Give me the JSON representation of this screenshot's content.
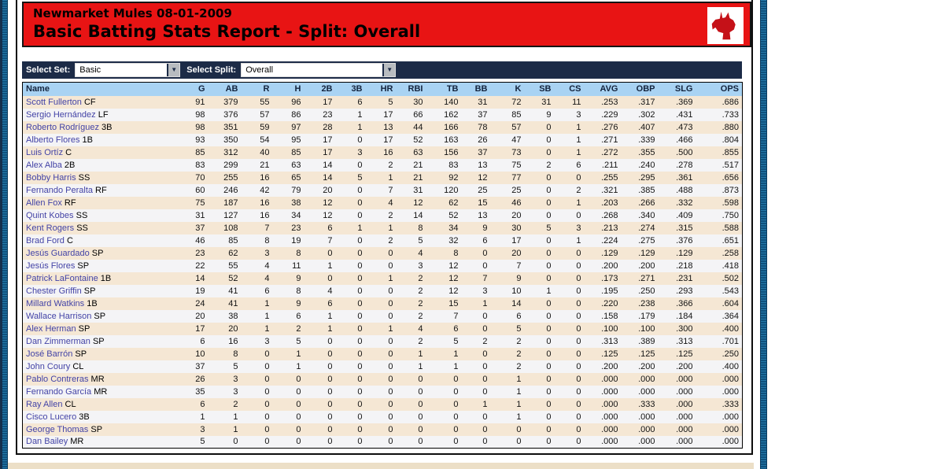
{
  "header": {
    "title_line1": "Newmarket Mules 08-01-2009",
    "title_line2": "Basic Batting Stats Report - Split: Overall"
  },
  "icons": {
    "dropdown_arrow": "▼",
    "team_logo": "mule-head"
  },
  "controls": {
    "select_set_label": "Select Set:",
    "select_set_value": "Basic",
    "select_split_label": "Select Split:",
    "select_split_value": "Overall"
  },
  "colors": {
    "header_red": "#e81414",
    "bar_navy": "#1c2b47",
    "table_header_blue": "#a9d3f3",
    "row_tan": "#f5e7d4",
    "row_light": "#f4f4f6",
    "player_link": "#4343a6",
    "side_bar_teal": "#0f517d"
  },
  "table": {
    "columns": [
      "Name",
      "G",
      "AB",
      "R",
      "H",
      "2B",
      "3B",
      "HR",
      "RBI",
      "TB",
      "BB",
      "K",
      "SB",
      "CS",
      "AVG",
      "OBP",
      "SLG",
      "OPS"
    ],
    "rows": [
      {
        "name": "Scott Fullerton",
        "pos": "CF",
        "stats": [
          "91",
          "379",
          "55",
          "96",
          "17",
          "6",
          "5",
          "30",
          "140",
          "31",
          "72",
          "31",
          "11",
          ".253",
          ".317",
          ".369",
          ".686"
        ]
      },
      {
        "name": "Sergio Hernández",
        "pos": "LF",
        "stats": [
          "98",
          "376",
          "57",
          "86",
          "23",
          "1",
          "17",
          "66",
          "162",
          "37",
          "85",
          "9",
          "3",
          ".229",
          ".302",
          ".431",
          ".733"
        ]
      },
      {
        "name": "Roberto Rodríguez",
        "pos": "3B",
        "stats": [
          "98",
          "351",
          "59",
          "97",
          "28",
          "1",
          "13",
          "44",
          "166",
          "78",
          "57",
          "0",
          "1",
          ".276",
          ".407",
          ".473",
          ".880"
        ]
      },
      {
        "name": "Alberto Flores",
        "pos": "1B",
        "stats": [
          "93",
          "350",
          "54",
          "95",
          "17",
          "0",
          "17",
          "52",
          "163",
          "26",
          "47",
          "0",
          "1",
          ".271",
          ".339",
          ".466",
          ".804"
        ]
      },
      {
        "name": "Luis Ortíz",
        "pos": "C",
        "stats": [
          "85",
          "312",
          "40",
          "85",
          "17",
          "3",
          "16",
          "63",
          "156",
          "37",
          "73",
          "0",
          "1",
          ".272",
          ".355",
          ".500",
          ".855"
        ]
      },
      {
        "name": "Alex Alba",
        "pos": "2B",
        "stats": [
          "83",
          "299",
          "21",
          "63",
          "14",
          "0",
          "2",
          "21",
          "83",
          "13",
          "75",
          "2",
          "6",
          ".211",
          ".240",
          ".278",
          ".517"
        ]
      },
      {
        "name": "Bobby Harris",
        "pos": "SS",
        "stats": [
          "70",
          "255",
          "16",
          "65",
          "14",
          "5",
          "1",
          "21",
          "92",
          "12",
          "77",
          "0",
          "0",
          ".255",
          ".295",
          ".361",
          ".656"
        ]
      },
      {
        "name": "Fernando Peralta",
        "pos": "RF",
        "stats": [
          "60",
          "246",
          "42",
          "79",
          "20",
          "0",
          "7",
          "31",
          "120",
          "25",
          "25",
          "0",
          "2",
          ".321",
          ".385",
          ".488",
          ".873"
        ]
      },
      {
        "name": "Allen Fox",
        "pos": "RF",
        "stats": [
          "75",
          "187",
          "16",
          "38",
          "12",
          "0",
          "4",
          "12",
          "62",
          "15",
          "46",
          "0",
          "1",
          ".203",
          ".266",
          ".332",
          ".598"
        ]
      },
      {
        "name": "Quint Kobes",
        "pos": "SS",
        "stats": [
          "31",
          "127",
          "16",
          "34",
          "12",
          "0",
          "2",
          "14",
          "52",
          "13",
          "20",
          "0",
          "0",
          ".268",
          ".340",
          ".409",
          ".750"
        ]
      },
      {
        "name": "Kent Rogers",
        "pos": "SS",
        "stats": [
          "37",
          "108",
          "7",
          "23",
          "6",
          "1",
          "1",
          "8",
          "34",
          "9",
          "30",
          "5",
          "3",
          ".213",
          ".274",
          ".315",
          ".588"
        ]
      },
      {
        "name": "Brad Ford",
        "pos": "C",
        "stats": [
          "46",
          "85",
          "8",
          "19",
          "7",
          "0",
          "2",
          "5",
          "32",
          "6",
          "17",
          "0",
          "1",
          ".224",
          ".275",
          ".376",
          ".651"
        ]
      },
      {
        "name": "Jesús Guardado",
        "pos": "SP",
        "stats": [
          "23",
          "62",
          "3",
          "8",
          "0",
          "0",
          "0",
          "4",
          "8",
          "0",
          "20",
          "0",
          "0",
          ".129",
          ".129",
          ".129",
          ".258"
        ]
      },
      {
        "name": "Jesús Flores",
        "pos": "SP",
        "stats": [
          "22",
          "55",
          "4",
          "11",
          "1",
          "0",
          "0",
          "3",
          "12",
          "0",
          "7",
          "0",
          "0",
          ".200",
          ".200",
          ".218",
          ".418"
        ]
      },
      {
        "name": "Patrick LaFontaine",
        "pos": "1B",
        "stats": [
          "14",
          "52",
          "4",
          "9",
          "0",
          "0",
          "1",
          "2",
          "12",
          "7",
          "9",
          "0",
          "0",
          ".173",
          ".271",
          ".231",
          ".502"
        ]
      },
      {
        "name": "Chester Griffin",
        "pos": "SP",
        "stats": [
          "19",
          "41",
          "6",
          "8",
          "4",
          "0",
          "0",
          "2",
          "12",
          "3",
          "10",
          "1",
          "0",
          ".195",
          ".250",
          ".293",
          ".543"
        ]
      },
      {
        "name": "Millard Watkins",
        "pos": "1B",
        "stats": [
          "24",
          "41",
          "1",
          "9",
          "6",
          "0",
          "0",
          "2",
          "15",
          "1",
          "14",
          "0",
          "0",
          ".220",
          ".238",
          ".366",
          ".604"
        ]
      },
      {
        "name": "Wallace Harrison",
        "pos": "SP",
        "stats": [
          "20",
          "38",
          "1",
          "6",
          "1",
          "0",
          "0",
          "2",
          "7",
          "0",
          "6",
          "0",
          "0",
          ".158",
          ".179",
          ".184",
          ".364"
        ]
      },
      {
        "name": "Alex Herman",
        "pos": "SP",
        "stats": [
          "17",
          "20",
          "1",
          "2",
          "1",
          "0",
          "1",
          "4",
          "6",
          "0",
          "5",
          "0",
          "0",
          ".100",
          ".100",
          ".300",
          ".400"
        ]
      },
      {
        "name": "Dan Zimmerman",
        "pos": "SP",
        "stats": [
          "6",
          "16",
          "3",
          "5",
          "0",
          "0",
          "0",
          "2",
          "5",
          "2",
          "2",
          "0",
          "0",
          ".313",
          ".389",
          ".313",
          ".701"
        ]
      },
      {
        "name": "José Barrón",
        "pos": "SP",
        "stats": [
          "10",
          "8",
          "0",
          "1",
          "0",
          "0",
          "0",
          "1",
          "1",
          "0",
          "2",
          "0",
          "0",
          ".125",
          ".125",
          ".125",
          ".250"
        ]
      },
      {
        "name": "John Coury",
        "pos": "CL",
        "stats": [
          "37",
          "5",
          "0",
          "1",
          "0",
          "0",
          "0",
          "1",
          "1",
          "0",
          "2",
          "0",
          "0",
          ".200",
          ".200",
          ".200",
          ".400"
        ]
      },
      {
        "name": "Pablo Contreras",
        "pos": "MR",
        "stats": [
          "26",
          "3",
          "0",
          "0",
          "0",
          "0",
          "0",
          "0",
          "0",
          "0",
          "1",
          "0",
          "0",
          ".000",
          ".000",
          ".000",
          ".000"
        ]
      },
      {
        "name": "Fernando García",
        "pos": "MR",
        "stats": [
          "35",
          "3",
          "0",
          "0",
          "0",
          "0",
          "0",
          "0",
          "0",
          "0",
          "1",
          "0",
          "0",
          ".000",
          ".000",
          ".000",
          ".000"
        ]
      },
      {
        "name": "Ray Allen",
        "pos": "CL",
        "stats": [
          "6",
          "2",
          "0",
          "0",
          "0",
          "0",
          "0",
          "0",
          "0",
          "1",
          "1",
          "0",
          "0",
          ".000",
          ".333",
          ".000",
          ".333"
        ]
      },
      {
        "name": "Cisco Lucero",
        "pos": "3B",
        "stats": [
          "1",
          "1",
          "0",
          "0",
          "0",
          "0",
          "0",
          "0",
          "0",
          "0",
          "1",
          "0",
          "0",
          ".000",
          ".000",
          ".000",
          ".000"
        ]
      },
      {
        "name": "George Thomas",
        "pos": "SP",
        "stats": [
          "3",
          "1",
          "0",
          "0",
          "0",
          "0",
          "0",
          "0",
          "0",
          "0",
          "0",
          "0",
          "0",
          ".000",
          ".000",
          ".000",
          ".000"
        ]
      },
      {
        "name": "Dan Bailey",
        "pos": "MR",
        "stats": [
          "5",
          "0",
          "0",
          "0",
          "0",
          "0",
          "0",
          "0",
          "0",
          "0",
          "0",
          "0",
          "0",
          ".000",
          ".000",
          ".000",
          ".000"
        ]
      }
    ]
  }
}
